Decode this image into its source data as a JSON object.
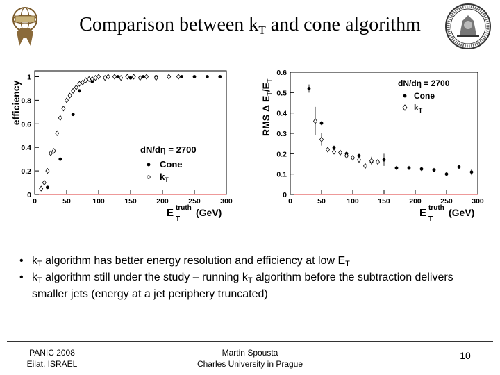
{
  "slide": {
    "title_pre": "Comparison between k",
    "title_sub": "T",
    "title_post": " and cone algorithm"
  },
  "bullets": [
    {
      "p1": "k",
      "s1": "T",
      "p2": " algorithm has better energy resolution and efficiency at low E",
      "s2": "T",
      "p3": ""
    },
    {
      "p1": "k",
      "s1": "T",
      "p2": " algorithm still under the study – running k",
      "s2": "T",
      "p3": " algorithm before the subtraction delivers smaller jets (energy at a jet periphery truncated)"
    }
  ],
  "footer": {
    "left_1": "PANIC 2008",
    "left_2": "Eilat, ISRAEL",
    "center_1": "Martin Spousta",
    "center_2": "Charles University in Prague",
    "page": "10"
  },
  "chart_data": [
    {
      "type": "scatter",
      "ylabel": "efficiency",
      "xlabel_main": "E",
      "xlabel_sub": "T",
      "xlabel_sup": "truth",
      "xlabel_unit": "(GeV)",
      "xlim": [
        0,
        300
      ],
      "ylim": [
        0,
        1.05
      ],
      "xticks": [
        0,
        50,
        100,
        150,
        200,
        250,
        300
      ],
      "yticks": [
        0,
        0.2,
        0.4,
        0.6,
        0.8,
        1
      ],
      "ytick_labels": [
        "0",
        "0.2",
        "0.4",
        "0.6",
        "0.8",
        "1"
      ],
      "legend_title": "dN/dη = 2700",
      "legend_position": "bottom-right",
      "series": [
        {
          "name": "Cone",
          "marker": "filled-circle",
          "x": [
            20,
            40,
            60,
            70,
            90,
            110,
            130,
            150,
            170,
            190,
            210,
            230,
            250,
            270,
            290
          ],
          "y": [
            0.06,
            0.3,
            0.68,
            0.88,
            0.96,
            0.99,
            1.0,
            0.99,
            1.0,
            1.0,
            1.0,
            1.0,
            1.0,
            1.0,
            1.0
          ]
        },
        {
          "name": "kT",
          "marker": "open-diamond",
          "x": [
            10,
            15,
            20,
            25,
            30,
            35,
            40,
            45,
            50,
            55,
            60,
            65,
            70,
            75,
            80,
            85,
            90,
            95,
            100,
            110,
            115,
            125,
            135,
            145,
            155,
            165,
            175,
            190,
            210,
            225
          ],
          "y": [
            0.05,
            0.1,
            0.2,
            0.35,
            0.37,
            0.52,
            0.65,
            0.73,
            0.8,
            0.84,
            0.88,
            0.91,
            0.94,
            0.95,
            0.97,
            0.98,
            0.98,
            0.99,
            1.0,
            0.99,
            1.0,
            1.0,
            0.99,
            1.0,
            1.0,
            0.99,
            1.0,
            0.99,
            1.0,
            1.0
          ]
        }
      ]
    },
    {
      "type": "scatter",
      "ylabel_main": "RMS Δ E",
      "ylabel_sub": "T",
      "ylabel_tail": "/E",
      "ylabel_tail_sub": "T",
      "xlabel_main": "E",
      "xlabel_sub": "T",
      "xlabel_sup": "truth",
      "xlabel_unit": "(GeV)",
      "xlim": [
        0,
        300
      ],
      "ylim": [
        0,
        0.6
      ],
      "xticks": [
        0,
        50,
        100,
        150,
        200,
        250,
        300
      ],
      "yticks": [
        0,
        0.1,
        0.2,
        0.3,
        0.4,
        0.5,
        0.6
      ],
      "ytick_labels": [
        "0",
        "0.1",
        "0.2",
        "0.3",
        "0.4",
        "0.5",
        "0.6"
      ],
      "legend_title": "dN/dη = 2700",
      "legend_position": "top-right",
      "series": [
        {
          "name": "Cone",
          "marker": "filled-circle",
          "x": [
            30,
            50,
            70,
            90,
            110,
            130,
            150,
            170,
            190,
            210,
            230,
            250,
            270,
            290
          ],
          "y": [
            0.52,
            0.35,
            0.23,
            0.2,
            0.19,
            0.16,
            0.17,
            0.13,
            0.13,
            0.125,
            0.12,
            0.1,
            0.135,
            0.11
          ],
          "err": [
            0.02,
            0.01,
            0.01,
            0.01,
            0.01,
            0.01,
            0.03,
            0.01,
            0.01,
            0.01,
            0.01,
            0.01,
            0.01,
            0.015
          ]
        },
        {
          "name": "kT",
          "marker": "open-diamond",
          "x": [
            40,
            50,
            60,
            70,
            80,
            90,
            100,
            110,
            120,
            130,
            140
          ],
          "y": [
            0.36,
            0.27,
            0.22,
            0.21,
            0.205,
            0.19,
            0.18,
            0.17,
            0.14,
            0.165,
            0.16
          ],
          "err": [
            0.07,
            0.03,
            0.01,
            0.01,
            0.01,
            0.01,
            0.01,
            0.01,
            0.01,
            0.02,
            0.01
          ]
        }
      ]
    }
  ]
}
